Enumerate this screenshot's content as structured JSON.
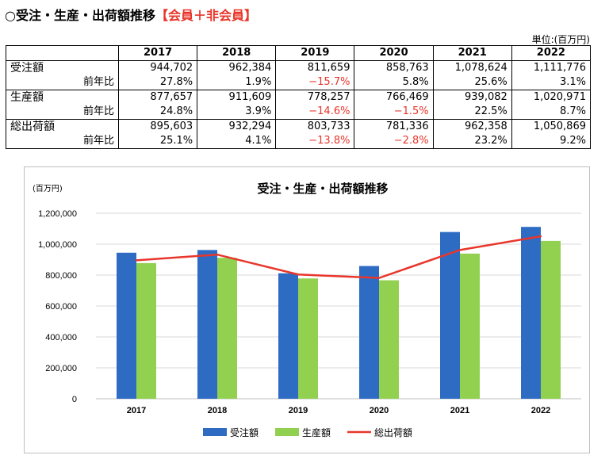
{
  "heading": {
    "prefix": "○受注・生産・出荷額推移",
    "accent": "【会員＋非会員】"
  },
  "unit_label": "単位:(百万円)",
  "table": {
    "years": [
      "2017",
      "2018",
      "2019",
      "2020",
      "2021",
      "2022"
    ],
    "groups": [
      {
        "label": "受注額",
        "values": [
          "944,702",
          "962,384",
          "811,659",
          "858,763",
          "1,078,624",
          "1,111,776"
        ],
        "yoy_label": "前年比",
        "yoy": [
          "27.8%",
          "1.9%",
          "−15.7%",
          "5.8%",
          "25.6%",
          "3.1%"
        ]
      },
      {
        "label": "生産額",
        "values": [
          "877,657",
          "911,609",
          "778,257",
          "766,469",
          "939,082",
          "1,020,971"
        ],
        "yoy_label": "前年比",
        "yoy": [
          "24.8%",
          "3.9%",
          "−14.6%",
          "−1.5%",
          "22.5%",
          "8.7%"
        ]
      },
      {
        "label": "総出荷額",
        "values": [
          "895,603",
          "932,294",
          "803,733",
          "781,336",
          "962,358",
          "1,050,869"
        ],
        "yoy_label": "前年比",
        "yoy": [
          "25.1%",
          "4.1%",
          "−13.8%",
          "−2.8%",
          "23.2%",
          "9.2%"
        ]
      }
    ]
  },
  "chart_data": {
    "type": "bar",
    "title": "受注・生産・出荷額推移",
    "ylabel": "(百万円)",
    "xlabel": "",
    "categories": [
      "2017",
      "2018",
      "2019",
      "2020",
      "2021",
      "2022"
    ],
    "ylim": [
      0,
      1200000
    ],
    "yticks": [
      0,
      200000,
      400000,
      600000,
      800000,
      1000000,
      1200000
    ],
    "ytick_labels": [
      "0",
      "200,000",
      "400,000",
      "600,000",
      "800,000",
      "1,000,000",
      "1,200,000"
    ],
    "grid": true,
    "legend_position": "bottom",
    "series": [
      {
        "name": "受注額",
        "kind": "bar",
        "color": "#2e6cc4",
        "values": [
          944702,
          962384,
          811659,
          858763,
          1078624,
          1111776
        ]
      },
      {
        "name": "生産額",
        "kind": "bar",
        "color": "#92d050",
        "values": [
          877657,
          911609,
          778257,
          766469,
          939082,
          1020971
        ]
      },
      {
        "name": "総出荷額",
        "kind": "line",
        "color": "#e8362b",
        "values": [
          895603,
          932294,
          803733,
          781336,
          962358,
          1050869
        ]
      }
    ]
  }
}
